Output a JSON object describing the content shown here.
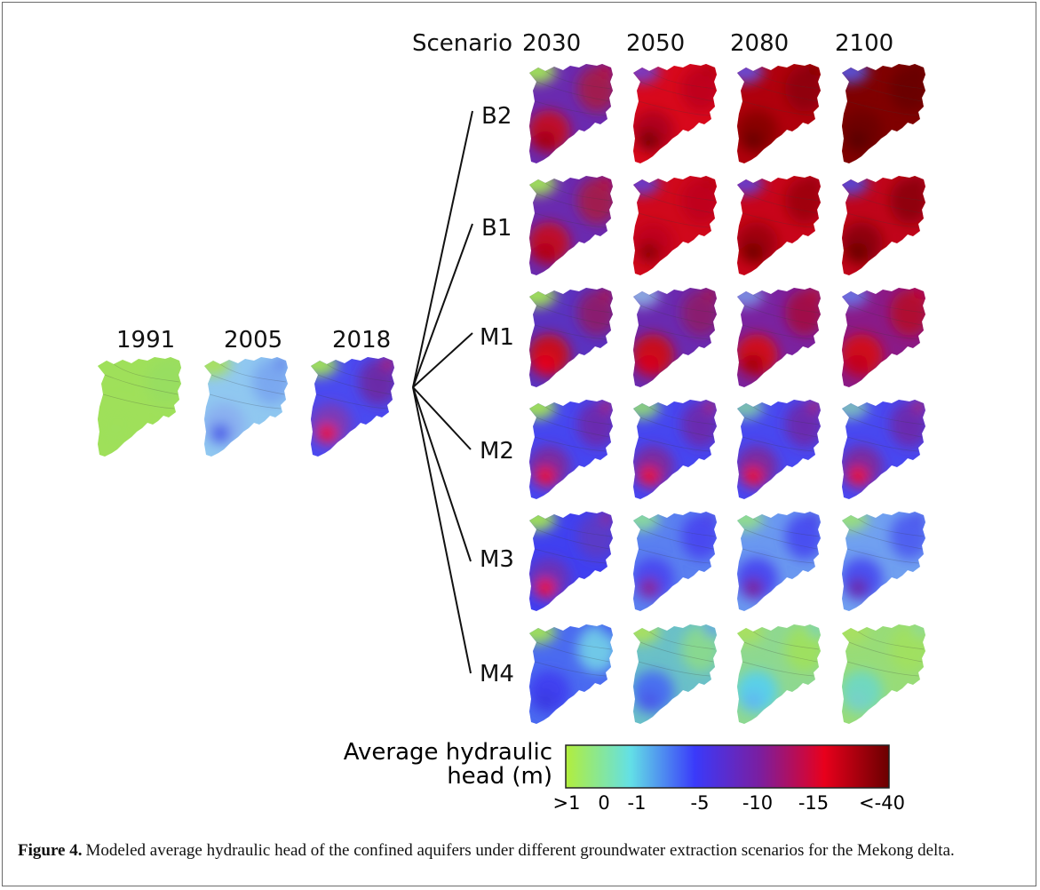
{
  "figure": {
    "scenario_heading": "Scenario",
    "future_years": [
      "2030",
      "2050",
      "2080",
      "2100"
    ],
    "scenarios": [
      "B2",
      "B1",
      "M1",
      "M2",
      "M3",
      "M4"
    ],
    "historic_years": [
      "1991",
      "2005",
      "2018"
    ]
  },
  "colorbar": {
    "title_line1": "Average hydraulic",
    "title_line2": "head (m)",
    "ticks": [
      ">1",
      "0",
      "-1",
      "-5",
      "-10",
      "-15",
      "<-40"
    ],
    "colors": [
      "#b2ee3c",
      "#63e0e6",
      "#3a3afa",
      "#7b1ea0",
      "#e8001c",
      "#6a0000"
    ]
  },
  "caption": {
    "label": "Figure 4.",
    "text": "Modeled average hydraulic head of the confined aquifers under different groundwater extraction scenarios for the Mekong delta."
  },
  "maps": {
    "historic_palette": [
      {
        "base": "#9fe05a",
        "nw": "#9fe05a",
        "ne": "#98de60",
        "sw": "#9fe05a",
        "hot": "#9ee05c",
        "hot2": "#98dc62"
      },
      {
        "base": "#90c8f0",
        "nw": "#a8e060",
        "ne": "#7aa8f0",
        "sw": "#8ab0f0",
        "hot": "#4a58e8",
        "hot2": "#5a70e8"
      },
      {
        "base": "#4a4af0",
        "nw": "#9fe05a",
        "ne": "#6a2aa8",
        "sw": "#7a3ab8",
        "hot": "#e8101c",
        "hot2": "#c0102a"
      }
    ],
    "scenario_palette": [
      [
        {
          "base": "#6a2ab0",
          "nw": "#9fe05a",
          "ne": "#a01a50",
          "sw": "#c0102a",
          "hot": "#a00010",
          "hot2": "#c8001a"
        },
        {
          "base": "#d8081c",
          "nw": "#7a3ac0",
          "ne": "#c0001a",
          "sw": "#b0001a",
          "hot": "#780000",
          "hot2": "#a8000c"
        },
        {
          "base": "#b0000c",
          "nw": "#6a4ad0",
          "ne": "#900008",
          "sw": "#8a0000",
          "hot": "#6a0000",
          "hot2": "#7a0000"
        },
        {
          "base": "#800000",
          "nw": "#5a50d0",
          "ne": "#6a0000",
          "sw": "#6e0000",
          "hot": "#5a0000",
          "hot2": "#640000"
        }
      ],
      [
        {
          "base": "#6a2ab0",
          "nw": "#9fe05a",
          "ne": "#a01a50",
          "sw": "#c0102a",
          "hot": "#b00010",
          "hot2": "#c8001a"
        },
        {
          "base": "#d0081c",
          "nw": "#6a3ac8",
          "ne": "#c0001a",
          "sw": "#c0001a",
          "hot": "#8a0000",
          "hot2": "#b0000c"
        },
        {
          "base": "#c8041a",
          "nw": "#6a3ac8",
          "ne": "#a00010",
          "sw": "#a00010",
          "hot": "#700000",
          "hot2": "#900008"
        },
        {
          "base": "#c0041a",
          "nw": "#5a44d0",
          "ne": "#900008",
          "sw": "#900008",
          "hot": "#6a0000",
          "hot2": "#880008"
        }
      ],
      [
        {
          "base": "#5a32c0",
          "nw": "#9fe05a",
          "ne": "#8a1a70",
          "sw": "#c8101e",
          "hot": "#e8001c",
          "hot2": "#b8102a"
        },
        {
          "base": "#6a2ab0",
          "nw": "#8aa8e0",
          "ne": "#8a1a70",
          "sw": "#c8101e",
          "hot": "#d8001c",
          "hot2": "#b0102a"
        },
        {
          "base": "#7a22a0",
          "nw": "#7a8ae0",
          "ne": "#a0104a",
          "sw": "#d0081c",
          "hot": "#a00010",
          "hot2": "#c0081c"
        },
        {
          "base": "#8a1a88",
          "nw": "#6a70e0",
          "ne": "#b00830",
          "sw": "#d0081c",
          "hot": "#c0001a",
          "hot2": "#d0041c"
        }
      ],
      [
        {
          "base": "#4646f0",
          "nw": "#9fe05a",
          "ne": "#6a2ab0",
          "sw": "#7a2aa0",
          "hot": "#e8101c",
          "hot2": "#b81a40"
        },
        {
          "base": "#4646f0",
          "nw": "#8ad080",
          "ne": "#6a2ab0",
          "sw": "#7a2aa0",
          "hot": "#e8101c",
          "hot2": "#b81a40"
        },
        {
          "base": "#4848f0",
          "nw": "#7ac0b0",
          "ne": "#6a2ab0",
          "sw": "#7a2aa0",
          "hot": "#e8101c",
          "hot2": "#b81a40"
        },
        {
          "base": "#4848f0",
          "nw": "#7ab8c0",
          "ne": "#6a2ab0",
          "sw": "#7a2aa0",
          "hot": "#e8101c",
          "hot2": "#b81a40"
        }
      ],
      [
        {
          "base": "#4040f0",
          "nw": "#9fe05a",
          "ne": "#5a3ac8",
          "sw": "#6a30b8",
          "hot": "#e8101c",
          "hot2": "#9a2070"
        },
        {
          "base": "#5a80f0",
          "nw": "#88d8a0",
          "ne": "#4848f0",
          "sw": "#4a4af0",
          "hot": "#8a2090",
          "hot2": "#5040e0"
        },
        {
          "base": "#6a98f0",
          "nw": "#90dc90",
          "ne": "#4a50f0",
          "sw": "#4a4af0",
          "hot": "#7a2098",
          "hot2": "#4a40e0"
        },
        {
          "base": "#70a0f0",
          "nw": "#98de80",
          "ne": "#5060f0",
          "sw": "#4a50f0",
          "hot": "#6a28a8",
          "hot2": "#4848e8"
        }
      ],
      [
        {
          "base": "#4a6af0",
          "nw": "#9fe05a",
          "ne": "#70c8e8",
          "sw": "#4040f0",
          "hot": "#3a3ae0",
          "hot2": "#3e44f0"
        },
        {
          "base": "#6ac0c8",
          "nw": "#a8e060",
          "ne": "#88d890",
          "sw": "#4a70f0",
          "hot": "#4a58e8",
          "hot2": "#5a90f0"
        },
        {
          "base": "#8ed890",
          "nw": "#a8e060",
          "ne": "#9ee060",
          "sw": "#5ad0e8",
          "hot": "#60b8f0",
          "hot2": "#70d0c0"
        },
        {
          "base": "#98dc78",
          "nw": "#a8e060",
          "ne": "#a0e060",
          "sw": "#70d8c0",
          "hot": "#78d0c8",
          "hot2": "#88d8a0"
        }
      ]
    ]
  }
}
